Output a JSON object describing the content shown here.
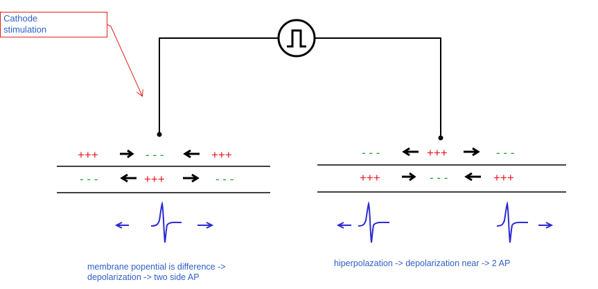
{
  "callout": {
    "line1": "Cathode",
    "line2": "stimulation"
  },
  "left": {
    "outer_charges": [
      "+++",
      "- - -",
      "+++"
    ],
    "inner_charges": [
      "- - -",
      "+++",
      "- - -"
    ],
    "caption_line1": "membrane popential is difference ->",
    "caption_line2": "depolarization -> two side AP"
  },
  "right": {
    "outer_charges": [
      "- - -",
      "+++",
      "- - -"
    ],
    "inner_charges": [
      "+++",
      "- - -",
      "+++"
    ],
    "caption": "hiperpolazation -> depolarization near -> 2 AP"
  },
  "colors": {
    "positive": "#e8141c",
    "negative": "#1e9a32",
    "text_blue": "#3060c8",
    "ap_blue": "#2a2ad0",
    "callout_border": "#e0201c"
  },
  "icons": [
    "pulse-generator-icon",
    "current-arrow-icon",
    "action-potential-icon",
    "propagation-arrow-icon"
  ]
}
